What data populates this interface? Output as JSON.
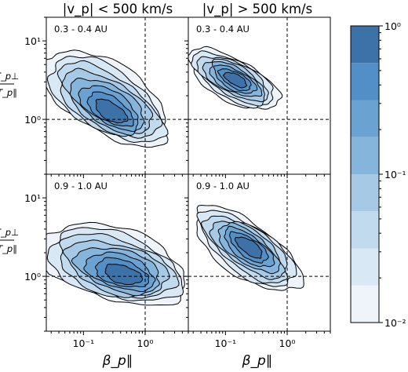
{
  "chart_data": {
    "type": "heatmap",
    "column_titles": [
      "|v_p| < 500 km/s",
      "|v_p| > 500 km/s"
    ],
    "panels": [
      {
        "row": 0,
        "col": 0,
        "label": "0.3 - 0.4 AU",
        "reference_lines": {
          "beta_par": 1.0,
          "temp_ratio": 1.0
        },
        "peak": {
          "beta_par": 0.3,
          "temp_ratio": 1.1
        },
        "extent": {
          "beta_par": [
            0.025,
            5.0
          ],
          "temp_ratio": [
            0.35,
            10.0
          ]
        }
      },
      {
        "row": 0,
        "col": 1,
        "label": "0.3 - 0.4 AU",
        "reference_lines": {
          "beta_par": 1.0,
          "temp_ratio": 1.0
        },
        "peak": {
          "beta_par": 0.15,
          "temp_ratio": 3.2
        },
        "extent": {
          "beta_par": [
            0.04,
            2.0
          ],
          "temp_ratio": [
            0.8,
            7.5
          ]
        }
      },
      {
        "row": 1,
        "col": 0,
        "label": "0.9 - 1.0 AU",
        "reference_lines": {
          "beta_par": 1.0,
          "temp_ratio": 1.0
        },
        "peak": {
          "beta_par": 0.5,
          "temp_ratio": 0.95
        },
        "extent": {
          "beta_par": [
            0.025,
            5.0
          ],
          "temp_ratio": [
            0.3,
            5.0
          ]
        }
      },
      {
        "row": 1,
        "col": 1,
        "label": "0.9 - 1.0 AU",
        "reference_lines": {
          "beta_par": 1.0,
          "temp_ratio": 1.0
        },
        "peak": {
          "beta_par": 0.25,
          "temp_ratio": 2.4
        },
        "extent": {
          "beta_par": [
            0.05,
            5.0
          ],
          "temp_ratio": [
            0.2,
            8.0
          ]
        }
      }
    ],
    "x_axis": {
      "label": "β_p∥",
      "scale": "log",
      "range": [
        0.025,
        5.0
      ],
      "ticks": [
        "10⁻¹",
        "10⁰"
      ],
      "tick_values": [
        0.1,
        1.0
      ]
    },
    "y_axis": {
      "label_num": "T_p⊥",
      "label_den": "T_p∥",
      "scale": "log",
      "range": [
        0.2,
        20.0
      ],
      "ticks": [
        "10¹",
        "10⁰"
      ],
      "tick_values": [
        10.0,
        1.0
      ]
    },
    "colorbar": {
      "scale": "log",
      "range": [
        0.01,
        1.0
      ],
      "levels": 8,
      "tick_labels": [
        "10⁰",
        "10⁻¹",
        "10⁻²"
      ],
      "tick_values": [
        1.0,
        0.1,
        0.01
      ],
      "colors": [
        "#eef4fa",
        "#d9e8f5",
        "#c2daee",
        "#a6c9e6",
        "#86b5dc",
        "#6aa3d2",
        "#528fc6",
        "#3d72a8"
      ]
    },
    "grid": false,
    "line_color": "#000000"
  }
}
